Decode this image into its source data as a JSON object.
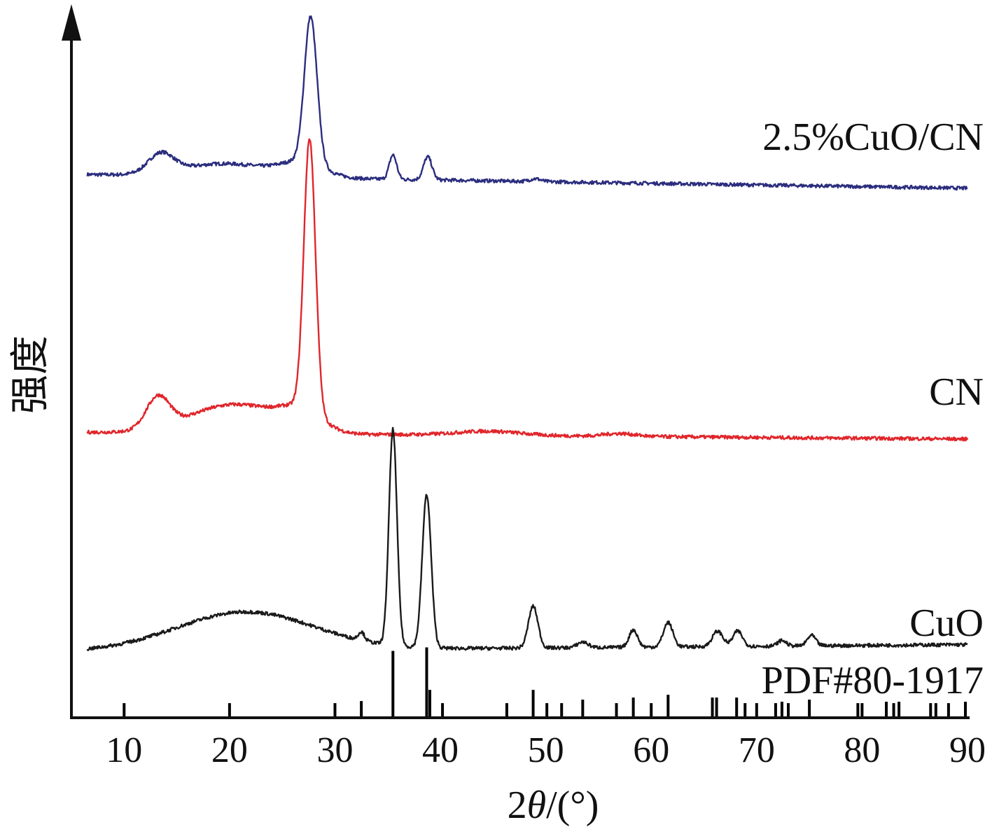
{
  "chart_data": {
    "type": "line",
    "xlabel": "2θ/(°)",
    "ylabel": "强度",
    "xlim": [
      5,
      90
    ],
    "xticks": [
      10,
      20,
      30,
      40,
      50,
      60,
      70,
      80,
      90
    ],
    "series": [
      {
        "name": "2.5%CuO/CN",
        "color": "#2b2d7e",
        "offset": 0.78,
        "baseline_start": 0.0,
        "baseline_end": -0.02,
        "peaks": [
          {
            "x": 13.5,
            "h": 0.028,
            "w": 1.2
          },
          {
            "x": 18.0,
            "h": 0.012,
            "w": 3.5
          },
          {
            "x": 22.0,
            "h": 0.01,
            "w": 3.5
          },
          {
            "x": 27.7,
            "h": 0.21,
            "w": 0.6
          },
          {
            "x": 27.0,
            "h": 0.02,
            "w": 2.0
          },
          {
            "x": 35.5,
            "h": 0.035,
            "w": 0.35
          },
          {
            "x": 38.8,
            "h": 0.033,
            "w": 0.4
          },
          {
            "x": 49.0,
            "h": 0.004,
            "w": 0.5
          }
        ]
      },
      {
        "name": "CN",
        "color": "#e0262b",
        "offset": 0.41,
        "baseline_start": 0.0,
        "baseline_end": -0.01,
        "peaks": [
          {
            "x": 13.2,
            "h": 0.045,
            "w": 1.1
          },
          {
            "x": 18.5,
            "h": 0.028,
            "w": 3.5
          },
          {
            "x": 22.5,
            "h": 0.022,
            "w": 3.0
          },
          {
            "x": 27.6,
            "h": 0.39,
            "w": 0.55
          },
          {
            "x": 26.8,
            "h": 0.03,
            "w": 2.0
          },
          {
            "x": 44.5,
            "h": 0.006,
            "w": 3.0
          },
          {
            "x": 57.0,
            "h": 0.004,
            "w": 1.5
          }
        ]
      },
      {
        "name": "CuO",
        "color": "#1a1a1a",
        "offset": 0.095,
        "baseline_start": 0.0,
        "baseline_end": 0.01,
        "peaks": [
          {
            "x": 21.5,
            "h": 0.055,
            "w": 6.5
          },
          {
            "x": 32.5,
            "h": 0.012,
            "w": 0.3
          },
          {
            "x": 35.5,
            "h": 0.31,
            "w": 0.38
          },
          {
            "x": 38.7,
            "h": 0.22,
            "w": 0.42
          },
          {
            "x": 48.8,
            "h": 0.06,
            "w": 0.45
          },
          {
            "x": 53.5,
            "h": 0.008,
            "w": 0.5
          },
          {
            "x": 58.3,
            "h": 0.025,
            "w": 0.4
          },
          {
            "x": 61.6,
            "h": 0.035,
            "w": 0.45
          },
          {
            "x": 66.3,
            "h": 0.022,
            "w": 0.5
          },
          {
            "x": 68.2,
            "h": 0.022,
            "w": 0.45
          },
          {
            "x": 72.4,
            "h": 0.008,
            "w": 0.4
          },
          {
            "x": 75.2,
            "h": 0.015,
            "w": 0.4
          }
        ]
      }
    ],
    "reference": {
      "name": "PDF#80-1917",
      "color": "#000000",
      "lines": [
        {
          "x": 10.0,
          "h": 0.021
        },
        {
          "x": 20.0,
          "h": 0.021
        },
        {
          "x": 30.0,
          "h": 0.021
        },
        {
          "x": 32.5,
          "h": 0.024
        },
        {
          "x": 35.5,
          "h": 0.096
        },
        {
          "x": 38.7,
          "h": 0.101
        },
        {
          "x": 39.0,
          "h": 0.04
        },
        {
          "x": 40.2,
          "h": 0.021
        },
        {
          "x": 46.3,
          "h": 0.021
        },
        {
          "x": 48.8,
          "h": 0.04
        },
        {
          "x": 50.1,
          "h": 0.021
        },
        {
          "x": 51.5,
          "h": 0.021
        },
        {
          "x": 53.5,
          "h": 0.026
        },
        {
          "x": 56.7,
          "h": 0.021
        },
        {
          "x": 58.3,
          "h": 0.029
        },
        {
          "x": 60.0,
          "h": 0.021
        },
        {
          "x": 61.6,
          "h": 0.033
        },
        {
          "x": 65.8,
          "h": 0.029
        },
        {
          "x": 66.2,
          "h": 0.029
        },
        {
          "x": 68.1,
          "h": 0.029
        },
        {
          "x": 68.9,
          "h": 0.021
        },
        {
          "x": 70.0,
          "h": 0.021
        },
        {
          "x": 71.8,
          "h": 0.021
        },
        {
          "x": 72.4,
          "h": 0.023
        },
        {
          "x": 73.0,
          "h": 0.021
        },
        {
          "x": 75.0,
          "h": 0.026
        },
        {
          "x": 79.6,
          "h": 0.021
        },
        {
          "x": 80.0,
          "h": 0.021
        },
        {
          "x": 82.3,
          "h": 0.023
        },
        {
          "x": 83.0,
          "h": 0.021
        },
        {
          "x": 83.5,
          "h": 0.023
        },
        {
          "x": 86.5,
          "h": 0.021
        },
        {
          "x": 87.0,
          "h": 0.021
        },
        {
          "x": 88.2,
          "h": 0.021
        },
        {
          "x": 89.8,
          "h": 0.023
        }
      ]
    },
    "grid": false,
    "legend": "none (labels placed at right end of each curve)"
  }
}
